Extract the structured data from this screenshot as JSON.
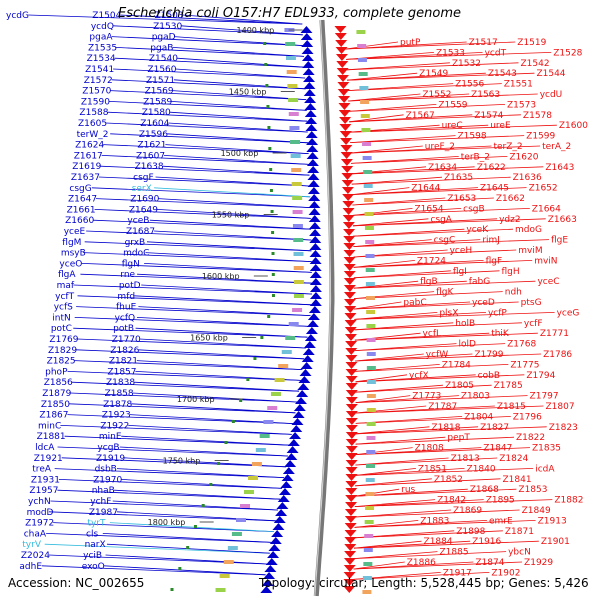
{
  "title": "Escherichia coli O157:H7 EDL933, complete genome",
  "accession": "Accession: NC_002655",
  "summary": "Topology: circular; Length: 5,528,445 bp; Genes: 5,426",
  "colors": {
    "forward": "#0000cc",
    "reverse": "#ee1111",
    "rna": "#33bbdd",
    "backbone": "#888888",
    "tick": "#2a8a2a"
  },
  "kbp_labels": [
    "1400 kbp",
    "1450 kbp",
    "1500 kbp",
    "1550 kbp",
    "1600 kbp",
    "1650 kbp",
    "1700 kbp",
    "1750 kbp",
    "1800 kbp"
  ],
  "left_labels": [
    {
      "t": "ycdG",
      "c": "f"
    },
    {
      "t": "Z1504",
      "c": "f"
    },
    {
      "t": "Z1503",
      "c": "f"
    },
    {
      "t": "ycdQ",
      "c": "f"
    },
    {
      "t": "Z1530",
      "c": "f"
    },
    {
      "t": "pgaA",
      "c": "f"
    },
    {
      "t": "pgaD",
      "c": "f"
    },
    {
      "t": "Z1535",
      "c": "f"
    },
    {
      "t": "pgaB",
      "c": "f"
    },
    {
      "t": "Z1534",
      "c": "f"
    },
    {
      "t": "Z1540",
      "c": "f"
    },
    {
      "t": "Z1541",
      "c": "f"
    },
    {
      "t": "Z1560",
      "c": "f"
    },
    {
      "t": "Z1572",
      "c": "f"
    },
    {
      "t": "Z1571",
      "c": "f"
    },
    {
      "t": "Z1570",
      "c": "f"
    },
    {
      "t": "Z1569",
      "c": "f"
    },
    {
      "t": "Z1590",
      "c": "f"
    },
    {
      "t": "Z1589",
      "c": "f"
    },
    {
      "t": "Z1588",
      "c": "f"
    },
    {
      "t": "Z1580",
      "c": "f"
    },
    {
      "t": "Z1605",
      "c": "f"
    },
    {
      "t": "Z1604",
      "c": "f"
    },
    {
      "t": "terW_2",
      "c": "f"
    },
    {
      "t": "Z1596",
      "c": "f"
    },
    {
      "t": "Z1624",
      "c": "f"
    },
    {
      "t": "Z1621",
      "c": "f"
    },
    {
      "t": "Z1617",
      "c": "f"
    },
    {
      "t": "Z1607",
      "c": "f"
    },
    {
      "t": "Z1619",
      "c": "f"
    },
    {
      "t": "Z1638",
      "c": "f"
    },
    {
      "t": "Z1637",
      "c": "f"
    },
    {
      "t": "csgF",
      "c": "f"
    },
    {
      "t": "csgG",
      "c": "f"
    },
    {
      "t": "serX",
      "c": "r"
    },
    {
      "t": "Z1647",
      "c": "f"
    },
    {
      "t": "Z1690",
      "c": "f"
    },
    {
      "t": "Z1661",
      "c": "f"
    },
    {
      "t": "Z1649",
      "c": "f"
    },
    {
      "t": "Z1660",
      "c": "f"
    },
    {
      "t": "yceB",
      "c": "f"
    },
    {
      "t": "yceE",
      "c": "f"
    },
    {
      "t": "Z1687",
      "c": "f"
    },
    {
      "t": "flgM",
      "c": "f"
    },
    {
      "t": "grxB",
      "c": "f"
    },
    {
      "t": "msyB",
      "c": "f"
    },
    {
      "t": "mdoC",
      "c": "f"
    },
    {
      "t": "yceO",
      "c": "f"
    },
    {
      "t": "flgN",
      "c": "f"
    },
    {
      "t": "flgA",
      "c": "f"
    },
    {
      "t": "rne",
      "c": "f"
    },
    {
      "t": "maf",
      "c": "f"
    },
    {
      "t": "potD",
      "c": "f"
    },
    {
      "t": "ycfT",
      "c": "f"
    },
    {
      "t": "mfd",
      "c": "f"
    },
    {
      "t": "ycfS",
      "c": "f"
    },
    {
      "t": "fhuE",
      "c": "f"
    },
    {
      "t": "intN",
      "c": "f"
    },
    {
      "t": "ycfQ",
      "c": "f"
    },
    {
      "t": "potC",
      "c": "f"
    },
    {
      "t": "potB",
      "c": "f"
    },
    {
      "t": "Z1769",
      "c": "f"
    },
    {
      "t": "Z1770",
      "c": "f"
    },
    {
      "t": "Z1829",
      "c": "f"
    },
    {
      "t": "Z1826",
      "c": "f"
    },
    {
      "t": "Z1825",
      "c": "f"
    },
    {
      "t": "Z1821",
      "c": "f"
    },
    {
      "t": "phoP",
      "c": "f"
    },
    {
      "t": "Z1857",
      "c": "f"
    },
    {
      "t": "Z1856",
      "c": "f"
    },
    {
      "t": "Z1838",
      "c": "f"
    },
    {
      "t": "Z1879",
      "c": "f"
    },
    {
      "t": "Z1858",
      "c": "f"
    },
    {
      "t": "Z1850",
      "c": "f"
    },
    {
      "t": "Z1878",
      "c": "f"
    },
    {
      "t": "Z1867",
      "c": "f"
    },
    {
      "t": "Z1923",
      "c": "f"
    },
    {
      "t": "minC",
      "c": "f"
    },
    {
      "t": "Z1922",
      "c": "f"
    },
    {
      "t": "Z1881",
      "c": "f"
    },
    {
      "t": "minE",
      "c": "f"
    },
    {
      "t": "ldcA",
      "c": "f"
    },
    {
      "t": "ycgB",
      "c": "f"
    },
    {
      "t": "Z1921",
      "c": "f"
    },
    {
      "t": "Z1919",
      "c": "f"
    },
    {
      "t": "treA",
      "c": "f"
    },
    {
      "t": "dsbB",
      "c": "f"
    },
    {
      "t": "Z1931",
      "c": "f"
    },
    {
      "t": "Z1970",
      "c": "f"
    },
    {
      "t": "Z1957",
      "c": "f"
    },
    {
      "t": "nhaB",
      "c": "f"
    },
    {
      "t": "ychN",
      "c": "f"
    },
    {
      "t": "ychF",
      "c": "f"
    },
    {
      "t": "modD",
      "c": "f"
    },
    {
      "t": "Z1987",
      "c": "f"
    },
    {
      "t": "Z1972",
      "c": "f"
    },
    {
      "t": "tyrT",
      "c": "r"
    },
    {
      "t": "chaA",
      "c": "f"
    },
    {
      "t": "cls",
      "c": "f"
    },
    {
      "t": "tyrV",
      "c": "r"
    },
    {
      "t": "narX",
      "c": "f"
    },
    {
      "t": "Z2024",
      "c": "f"
    },
    {
      "t": "yciB",
      "c": "f"
    },
    {
      "t": "adhE",
      "c": "f"
    },
    {
      "t": "exoO",
      "c": "f"
    }
  ],
  "right_labels": [
    "putP",
    "Z1517",
    "Z1519",
    "Z1533",
    "ycdT",
    "Z1528",
    "Z1532",
    "Z1542",
    "Z1549",
    "Z1543",
    "Z1544",
    "Z1556",
    "Z1551",
    "Z1552",
    "Z1563",
    "ycdU",
    "Z1559",
    "Z1573",
    "Z1567",
    "Z1574",
    "Z1578",
    "ureC",
    "ureE",
    "Z1600",
    "Z1598",
    "Z1599",
    "ureF_2",
    "terZ_2",
    "terA_2",
    "terB_2",
    "Z1620",
    "Z1634",
    "Z1622",
    "Z1643",
    "Z1635",
    "Z1636",
    "Z1644",
    "Z1645",
    "Z1652",
    "Z1653",
    "Z1662",
    "Z1654",
    "csgB",
    "Z1664",
    "csgA",
    "ydz2",
    "Z1663",
    "yceK",
    "mdoG",
    "csgC",
    "rimJ",
    "flgE",
    "yceH",
    "mviM",
    "Z1724",
    "flgF",
    "mviN",
    "flgI",
    "flgH",
    "flgB",
    "fabG",
    "yceC",
    "flgK",
    "ndh",
    "pabC",
    "yceD",
    "ptsG",
    "plsX",
    "ycfP",
    "yceG",
    "holB",
    "ycfF",
    "ycfL",
    "thiK",
    "Z1771",
    "lolD",
    "Z1768",
    "ycfW",
    "Z1799",
    "Z1786",
    "Z1784",
    "Z1775",
    "ycfX",
    "cobB",
    "Z1794",
    "Z1805",
    "Z1785",
    "Z1773",
    "Z1803",
    "Z1797",
    "Z1787",
    "Z1815",
    "Z1807",
    "Z1804",
    "Z1796",
    "Z1818",
    "Z1827",
    "Z1823",
    "pepT",
    "Z1822",
    "Z1808",
    "Z1847",
    "Z1835",
    "Z1813",
    "Z1824",
    "Z1851",
    "Z1840",
    "icdA",
    "Z1852",
    "Z1841",
    "rus",
    "Z1868",
    "Z1853",
    "Z1842",
    "Z1895",
    "Z1882",
    "Z1869",
    "Z1849",
    "Z1883",
    "emrE",
    "Z1913",
    "Z1898",
    "Z1871",
    "Z1884",
    "Z1916",
    "Z1901",
    "Z1885",
    "ybcN",
    "Z1886",
    "Z1874",
    "Z1929",
    "Z1917",
    "Z1902"
  ]
}
